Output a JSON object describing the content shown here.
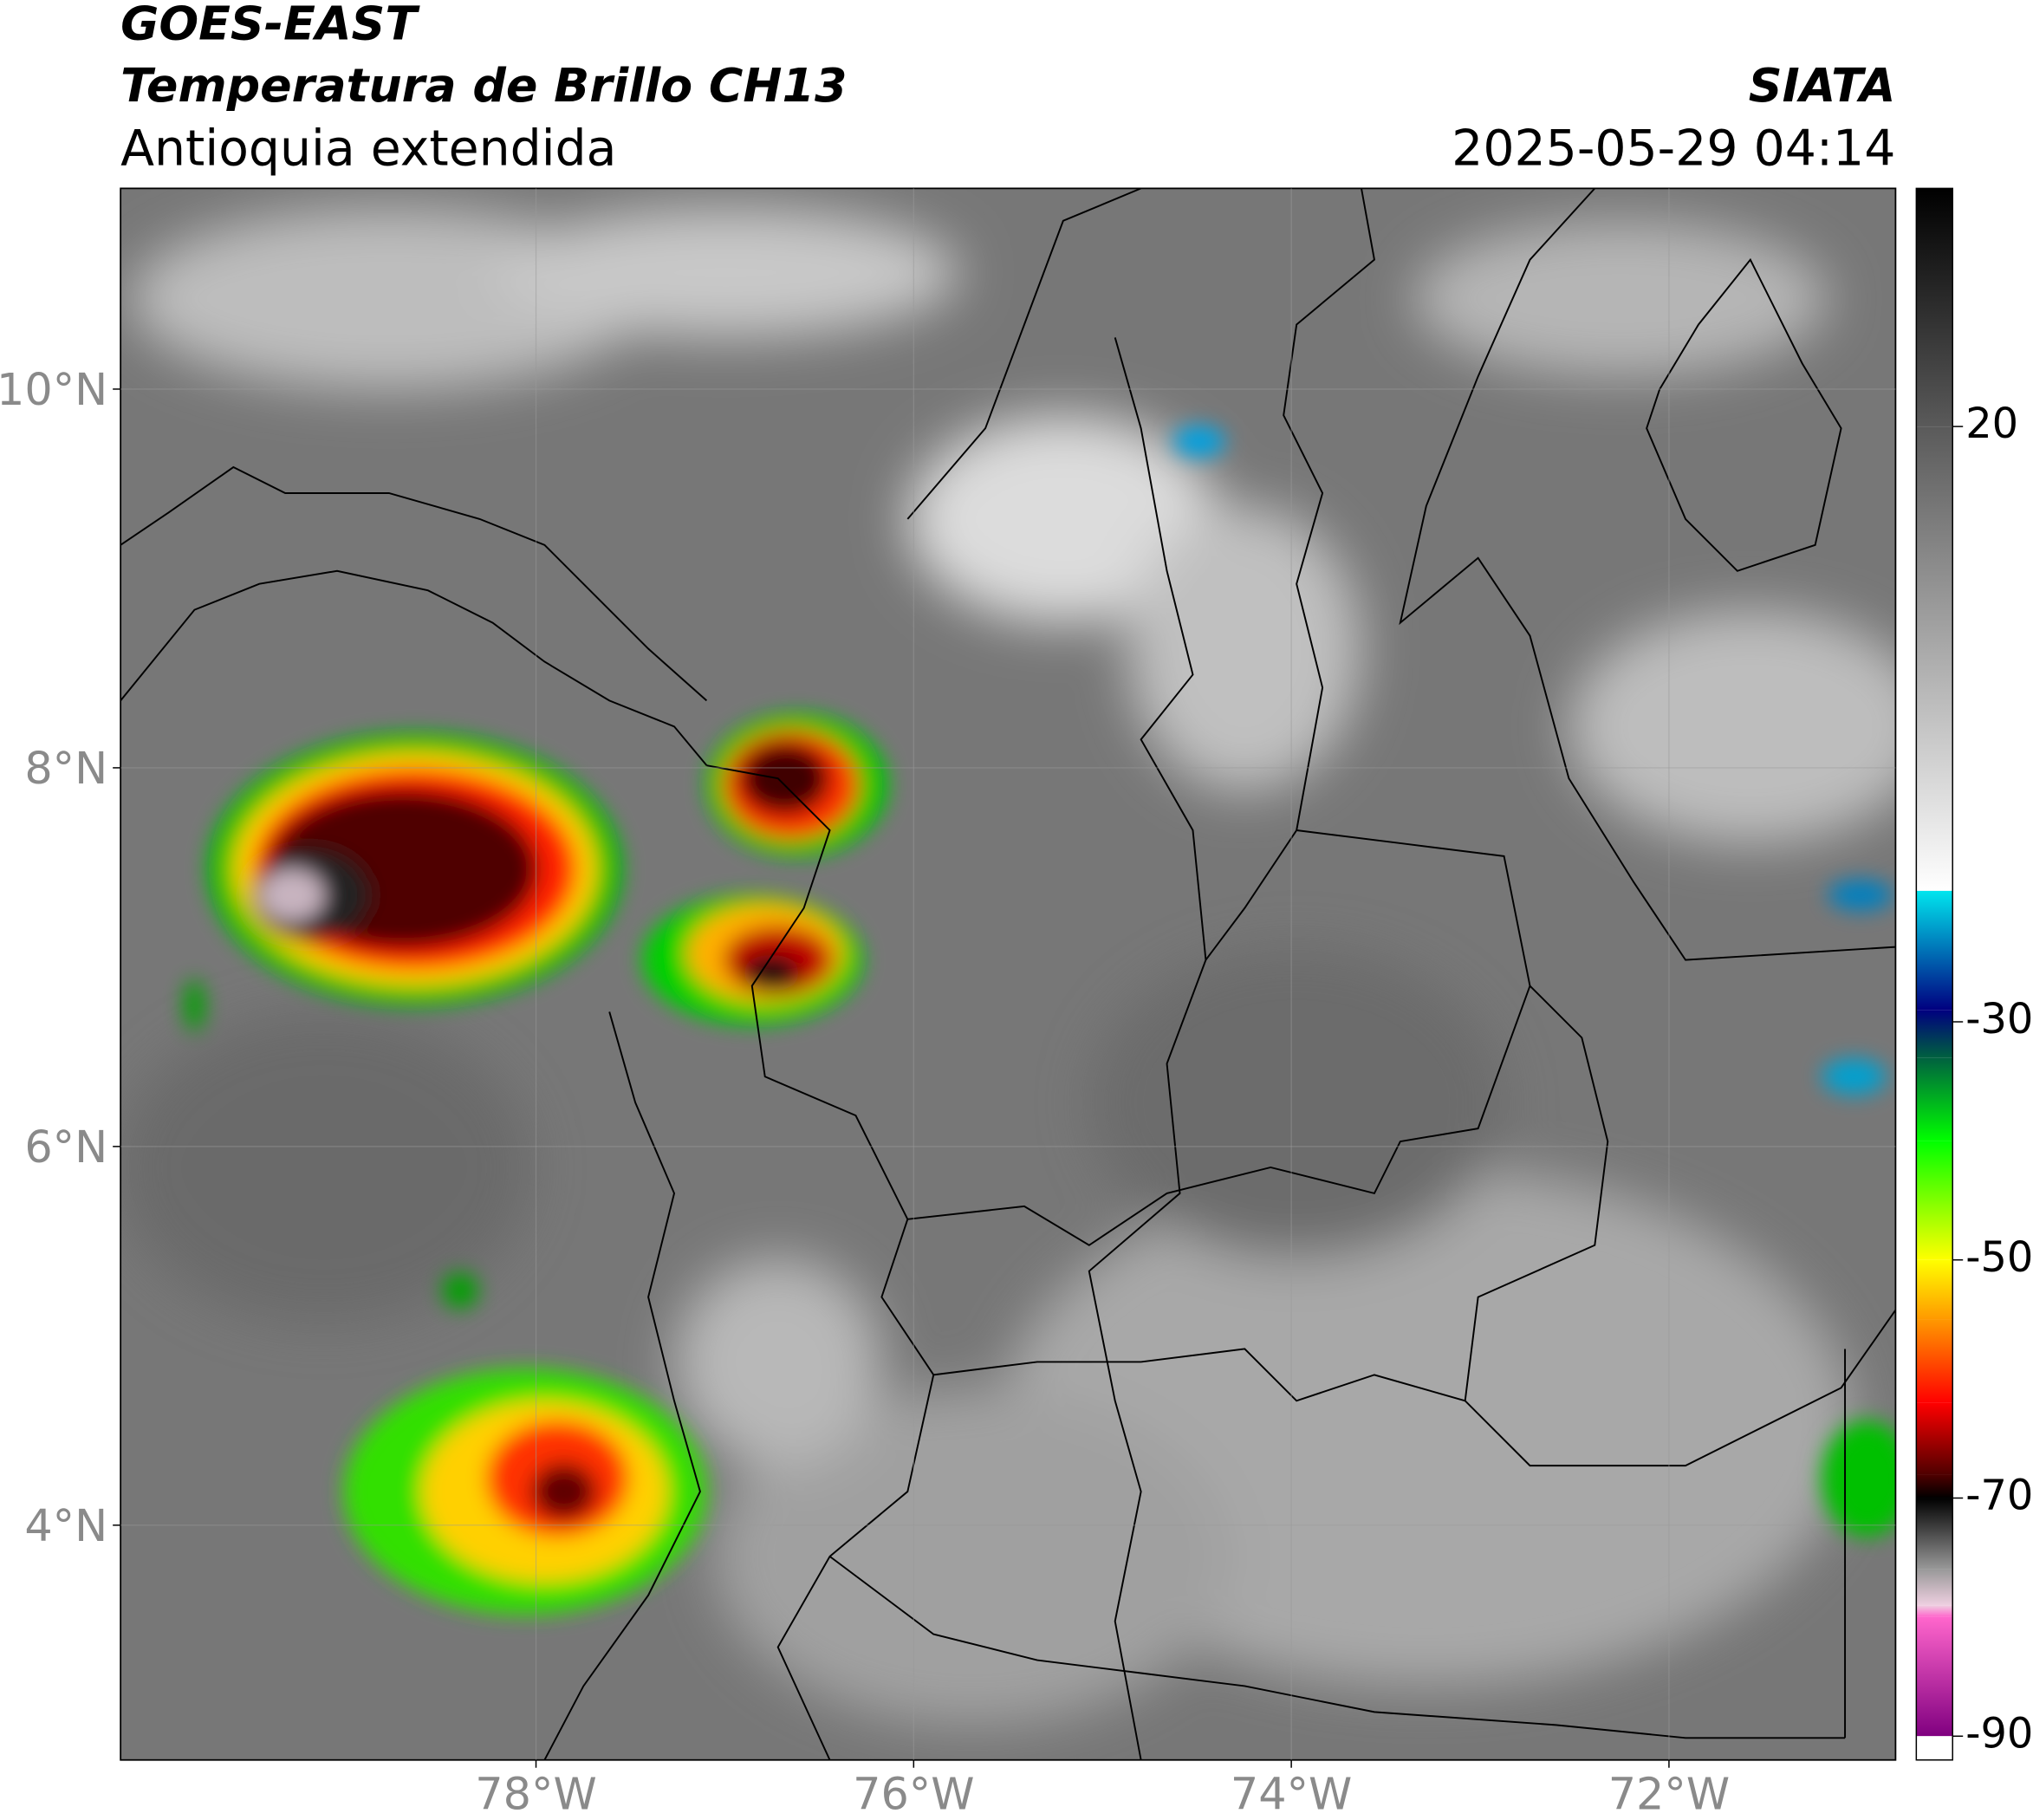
{
  "chart_data": {
    "type": "map",
    "title": "GOES-EAST",
    "subtitle": "Temperatura de Brillo CH13",
    "region": "Antioquia extendida",
    "source": "SIATA",
    "timestamp": "2025-05-29 04:14",
    "xlim": [
      -80.2,
      -70.8
    ],
    "ylim": [
      2.76,
      11.06
    ],
    "xticks": [
      {
        "value": -78,
        "label": "78°W"
      },
      {
        "value": -76,
        "label": "76°W"
      },
      {
        "value": -74,
        "label": "74°W"
      },
      {
        "value": -72,
        "label": "72°W"
      }
    ],
    "yticks": [
      {
        "value": 10,
        "label": "10°N"
      },
      {
        "value": 8,
        "label": "8°N"
      },
      {
        "value": 6,
        "label": "6°N"
      },
      {
        "value": 4,
        "label": "4°N"
      }
    ],
    "grid": true,
    "colorbar": {
      "lim": [
        -92,
        40
      ],
      "ticks": [
        20,
        -30,
        -50,
        -70,
        -90
      ],
      "stops": [
        {
          "value": 40,
          "color": "#000000"
        },
        {
          "value": 20,
          "color": "#5a5a5a"
        },
        {
          "value": -19,
          "color": "#ffffff"
        },
        {
          "value": -19,
          "color": "#00e5ee"
        },
        {
          "value": -29,
          "color": "#000080"
        },
        {
          "value": -33,
          "color": "#006040"
        },
        {
          "value": -40,
          "color": "#00ff00"
        },
        {
          "value": -50,
          "color": "#ffff00"
        },
        {
          "value": -55,
          "color": "#ff9900"
        },
        {
          "value": -62,
          "color": "#ff0000"
        },
        {
          "value": -68,
          "color": "#500000"
        },
        {
          "value": -70,
          "color": "#000000"
        },
        {
          "value": -76,
          "color": "#999999"
        },
        {
          "value": -79,
          "color": "#eecfe0"
        },
        {
          "value": -80,
          "color": "#ff66cc"
        },
        {
          "value": -90,
          "color": "#800080"
        },
        {
          "value": -90,
          "color": "#ffffff"
        },
        {
          "value": -92,
          "color": "#ffffff"
        }
      ]
    }
  }
}
